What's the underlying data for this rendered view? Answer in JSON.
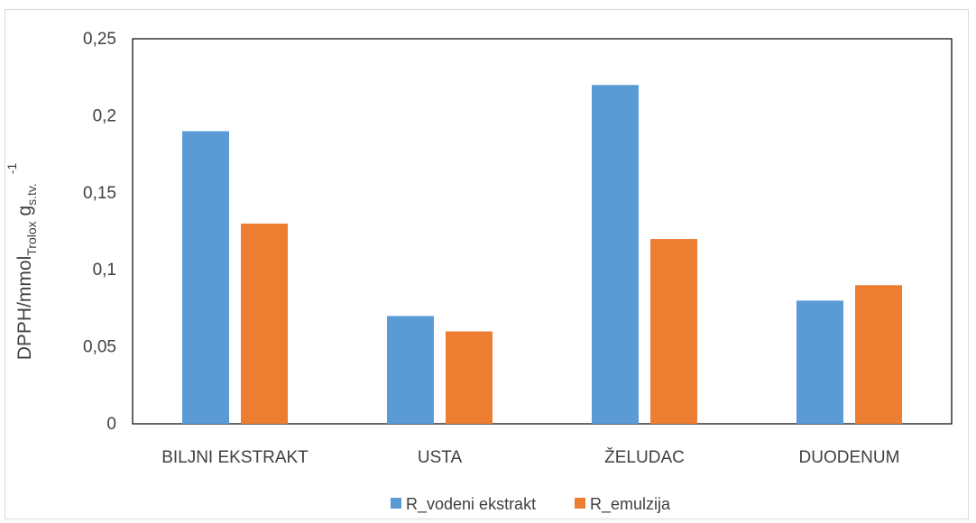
{
  "chart_data": {
    "type": "bar",
    "categories": [
      "BILJNI EKSTRAKT",
      "USTA",
      "ŽELUDAC",
      "DUODENUM"
    ],
    "series": [
      {
        "name": "R_vodeni ekstrakt",
        "values": [
          0.19,
          0.07,
          0.22,
          0.08
        ],
        "color": "#5b9bd5"
      },
      {
        "name": "R_emulzija",
        "values": [
          0.13,
          0.06,
          0.12,
          0.09
        ],
        "color": "#ed7d31"
      }
    ],
    "ylim": [
      0,
      0.25
    ],
    "yticks": [
      0,
      0.05,
      0.1,
      0.15,
      0.2,
      0.25
    ],
    "ytick_labels": [
      "0",
      "0,05",
      "0,1",
      "0,15",
      "0,2",
      "0,25"
    ],
    "ylabel": {
      "main": "DPPH/mmol",
      "sub1": "Trolox",
      "g": " g",
      "sub2": "s.tv.",
      "sup": "-1"
    },
    "xlabel": "",
    "grid": false,
    "legend": "bottom"
  }
}
